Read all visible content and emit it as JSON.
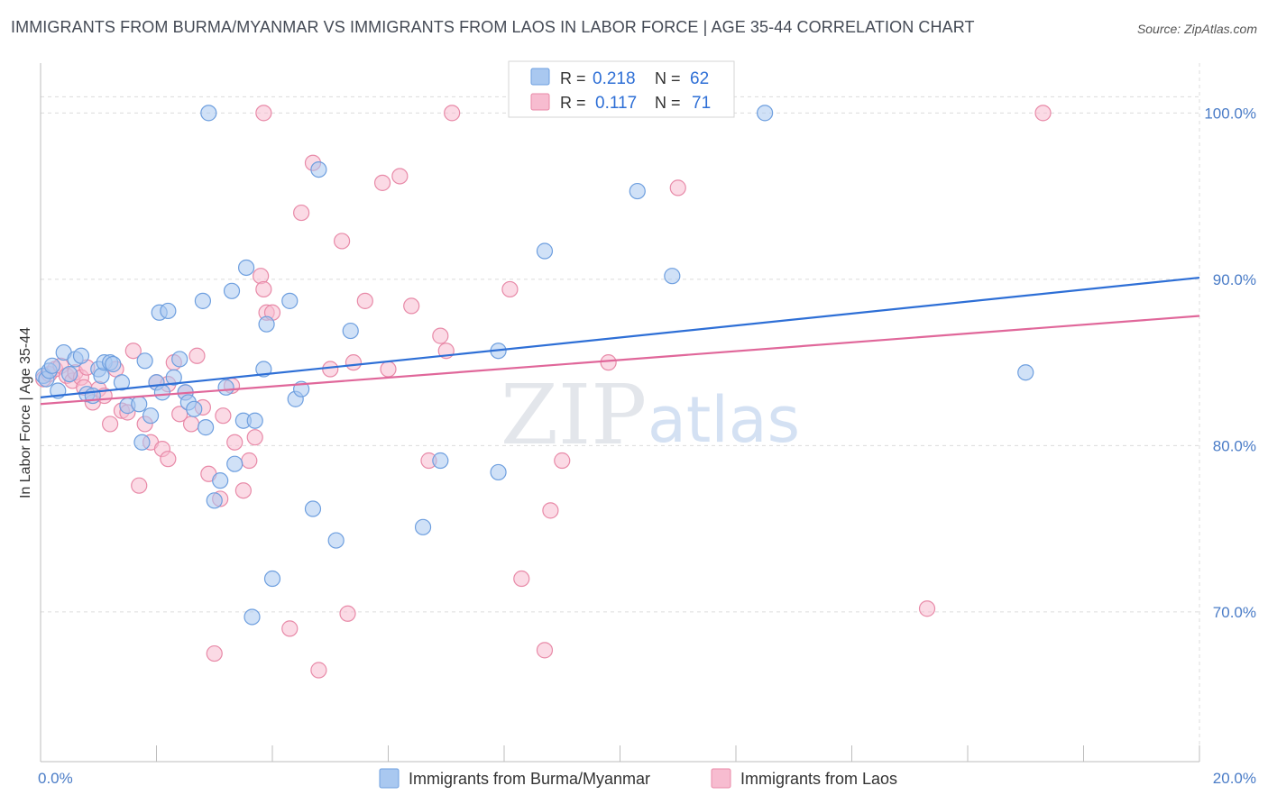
{
  "title": "IMMIGRANTS FROM BURMA/MYANMAR VS IMMIGRANTS FROM LAOS IN LABOR FORCE | AGE 35-44 CORRELATION CHART",
  "source": "Source: ZipAtlas.com",
  "watermark": {
    "zip": "ZIP",
    "atlas": "atlas"
  },
  "colors": {
    "blue_fill": "#a9c8f0",
    "blue_stroke": "#6e9fdf",
    "blue_line": "#2e6fd6",
    "pink_fill": "#f7bcd0",
    "pink_stroke": "#e88aa8",
    "pink_line": "#e0679a",
    "grid": "#dcdcdc",
    "tick_text": "#4a7cc7"
  },
  "legend": {
    "rows": [
      {
        "r_label": "R = ",
        "r_value": "0.218",
        "n_label": "N = ",
        "n_value": "62"
      },
      {
        "r_label": "R = ",
        "r_value": "0.117",
        "n_label": "N = ",
        "n_value": "71"
      }
    ]
  },
  "chart_data": {
    "type": "scatter",
    "title": "IMMIGRANTS FROM BURMA/MYANMAR VS IMMIGRANTS FROM LAOS IN LABOR FORCE | AGE 35-44 CORRELATION CHART",
    "xlabel": "",
    "ylabel": "In Labor Force | Age 35-44",
    "xlim": [
      0,
      20
    ],
    "ylim": [
      61,
      103
    ],
    "x_tick_labels": [
      "0.0%",
      "20.0%"
    ],
    "y_ticks": [
      70,
      80,
      90,
      100
    ],
    "y_tick_labels": [
      "70.0%",
      "80.0%",
      "90.0%",
      "100.0%"
    ],
    "series": [
      {
        "name": "Immigrants from Burma/Myanmar",
        "color": "#a9c8f0",
        "trend": {
          "x0": 0,
          "y0": 82.9,
          "x1": 20,
          "y1": 90.1
        },
        "points": [
          [
            0.05,
            84.2
          ],
          [
            0.1,
            84.0
          ],
          [
            0.15,
            84.5
          ],
          [
            0.2,
            84.8
          ],
          [
            0.3,
            83.3
          ],
          [
            0.4,
            85.6
          ],
          [
            0.5,
            84.3
          ],
          [
            0.6,
            85.2
          ],
          [
            0.7,
            85.4
          ],
          [
            0.8,
            83.1
          ],
          [
            0.9,
            83.0
          ],
          [
            1.0,
            84.6
          ],
          [
            1.05,
            84.2
          ],
          [
            1.1,
            85.0
          ],
          [
            1.2,
            85.0
          ],
          [
            1.4,
            83.8
          ],
          [
            1.5,
            82.4
          ],
          [
            1.7,
            82.5
          ],
          [
            1.75,
            80.2
          ],
          [
            1.8,
            85.1
          ],
          [
            1.9,
            81.8
          ],
          [
            2.0,
            83.8
          ],
          [
            2.05,
            88.0
          ],
          [
            2.1,
            83.2
          ],
          [
            2.2,
            88.1
          ],
          [
            2.3,
            84.1
          ],
          [
            2.4,
            85.2
          ],
          [
            2.5,
            83.2
          ],
          [
            2.55,
            82.6
          ],
          [
            2.65,
            82.2
          ],
          [
            2.8,
            88.7
          ],
          [
            2.85,
            81.1
          ],
          [
            2.9,
            100.0
          ],
          [
            3.0,
            76.7
          ],
          [
            3.1,
            77.9
          ],
          [
            3.2,
            83.5
          ],
          [
            3.3,
            89.3
          ],
          [
            3.35,
            78.9
          ],
          [
            3.5,
            81.5
          ],
          [
            3.55,
            90.7
          ],
          [
            3.65,
            69.7
          ],
          [
            3.7,
            81.5
          ],
          [
            3.85,
            84.6
          ],
          [
            3.9,
            87.3
          ],
          [
            4.0,
            72.0
          ],
          [
            4.3,
            88.7
          ],
          [
            4.4,
            82.8
          ],
          [
            4.5,
            83.4
          ],
          [
            4.7,
            76.2
          ],
          [
            4.8,
            96.6
          ],
          [
            5.1,
            74.3
          ],
          [
            5.35,
            86.9
          ],
          [
            6.6,
            75.1
          ],
          [
            6.9,
            79.1
          ],
          [
            7.9,
            85.7
          ],
          [
            7.9,
            78.4
          ],
          [
            8.7,
            91.7
          ],
          [
            10.3,
            95.3
          ],
          [
            10.9,
            90.2
          ],
          [
            12.5,
            100.0
          ],
          [
            17.0,
            84.4
          ],
          [
            1.25,
            84.9
          ]
        ]
      },
      {
        "name": "Immigrants from Laos",
        "color": "#f7bcd0",
        "trend": {
          "x0": 0,
          "y0": 82.5,
          "x1": 20,
          "y1": 87.8
        },
        "points": [
          [
            0.05,
            84.0
          ],
          [
            0.15,
            84.3
          ],
          [
            0.25,
            84.6
          ],
          [
            0.35,
            84.8
          ],
          [
            0.45,
            84.2
          ],
          [
            0.55,
            83.9
          ],
          [
            0.6,
            84.4
          ],
          [
            0.7,
            84.1
          ],
          [
            0.8,
            84.7
          ],
          [
            0.9,
            82.6
          ],
          [
            1.0,
            83.4
          ],
          [
            1.1,
            83.0
          ],
          [
            1.2,
            81.3
          ],
          [
            1.3,
            84.6
          ],
          [
            1.4,
            82.1
          ],
          [
            1.5,
            82.0
          ],
          [
            1.6,
            85.7
          ],
          [
            1.7,
            77.6
          ],
          [
            1.8,
            81.3
          ],
          [
            1.9,
            80.2
          ],
          [
            2.0,
            83.8
          ],
          [
            2.1,
            79.8
          ],
          [
            2.2,
            79.2
          ],
          [
            2.3,
            85.0
          ],
          [
            2.4,
            81.9
          ],
          [
            2.5,
            83.2
          ],
          [
            2.6,
            81.3
          ],
          [
            2.7,
            85.4
          ],
          [
            2.8,
            82.3
          ],
          [
            2.9,
            78.3
          ],
          [
            3.0,
            67.5
          ],
          [
            3.1,
            76.8
          ],
          [
            3.15,
            81.8
          ],
          [
            3.3,
            83.6
          ],
          [
            3.35,
            80.2
          ],
          [
            3.5,
            77.3
          ],
          [
            3.6,
            79.1
          ],
          [
            3.7,
            80.5
          ],
          [
            3.8,
            90.2
          ],
          [
            3.85,
            89.4
          ],
          [
            3.9,
            88.0
          ],
          [
            4.0,
            88.0
          ],
          [
            4.3,
            69.0
          ],
          [
            4.5,
            94.0
          ],
          [
            4.7,
            97.0
          ],
          [
            4.8,
            66.5
          ],
          [
            5.0,
            84.6
          ],
          [
            5.2,
            92.3
          ],
          [
            5.3,
            69.9
          ],
          [
            5.4,
            85.0
          ],
          [
            5.6,
            88.7
          ],
          [
            5.9,
            95.8
          ],
          [
            6.0,
            84.6
          ],
          [
            6.2,
            96.2
          ],
          [
            6.4,
            88.4
          ],
          [
            6.7,
            79.1
          ],
          [
            6.9,
            86.6
          ],
          [
            7.0,
            85.7
          ],
          [
            7.1,
            100.0
          ],
          [
            8.1,
            89.4
          ],
          [
            8.3,
            72.0
          ],
          [
            8.7,
            67.7
          ],
          [
            8.8,
            76.1
          ],
          [
            9.0,
            79.1
          ],
          [
            9.8,
            85.0
          ],
          [
            11.0,
            95.5
          ],
          [
            15.3,
            70.2
          ],
          [
            17.3,
            100.0
          ],
          [
            3.85,
            100.0
          ],
          [
            2.2,
            83.7
          ],
          [
            0.75,
            83.5
          ]
        ]
      }
    ]
  },
  "bottom_legend": [
    {
      "label": "Immigrants from Burma/Myanmar"
    },
    {
      "label": "Immigrants from Laos"
    }
  ]
}
